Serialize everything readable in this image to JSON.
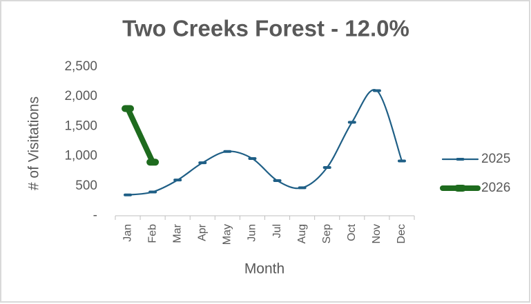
{
  "chart_data": {
    "type": "line",
    "title": "Two Creeks Forest - 12.0%",
    "xlabel": "Month",
    "ylabel": "# of Visitations",
    "categories": [
      "Jan",
      "Feb",
      "Mar",
      "Apr",
      "May",
      "Jun",
      "Jul",
      "Aug",
      "Sep",
      "Oct",
      "Nov",
      "Dec"
    ],
    "series": [
      {
        "name": "2025",
        "color": "#1f5f86",
        "values": [
          350,
          400,
          600,
          890,
          1080,
          960,
          590,
          470,
          810,
          1570,
          2100,
          920
        ]
      },
      {
        "name": "2026",
        "color": "#1e6b1e",
        "values": [
          1800,
          900,
          null,
          null,
          null,
          null,
          null,
          null,
          null,
          null,
          null,
          null
        ]
      }
    ],
    "ylim": [
      0,
      2500
    ],
    "yticks": [
      {
        "value": 0,
        "label": "-"
      },
      500,
      {
        "value": 1000,
        "label": "1,000"
      },
      {
        "value": 1500,
        "label": "1,500"
      },
      {
        "value": 2000,
        "label": "2,000"
      },
      {
        "value": 2500,
        "label": "2,500"
      }
    ],
    "smooth": true,
    "legend": "right"
  }
}
